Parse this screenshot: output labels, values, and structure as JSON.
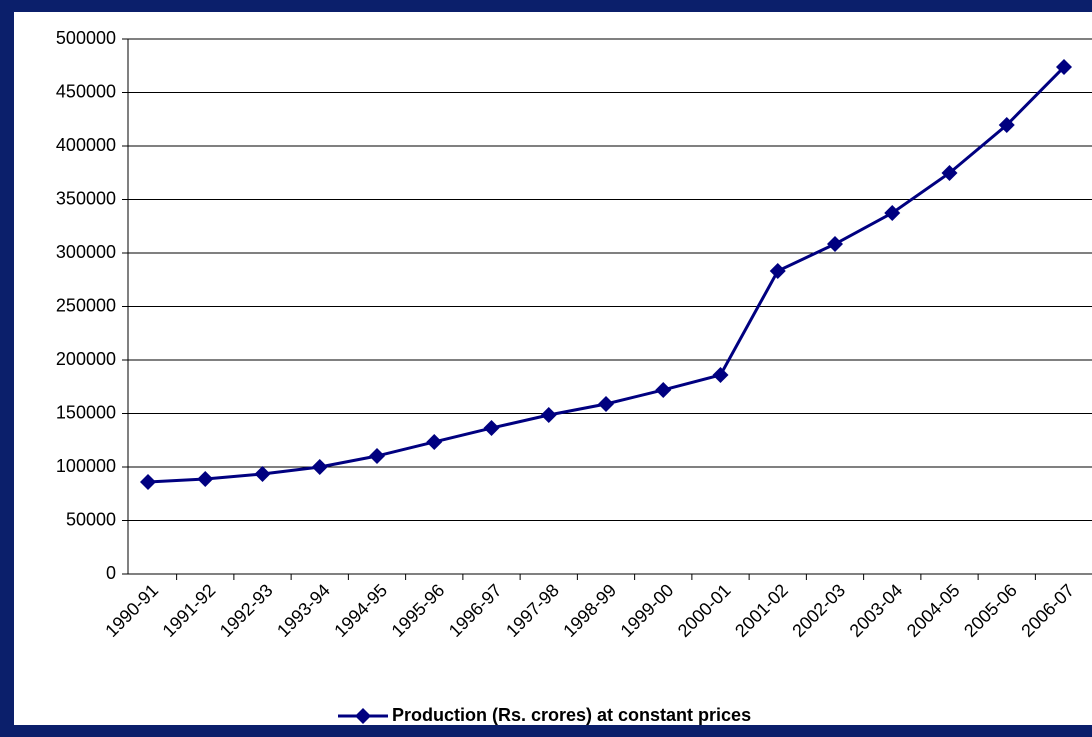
{
  "chart_data": {
    "type": "line",
    "categories": [
      "1990-91",
      "1991-92",
      "1992-93",
      "1993-94",
      "1994-95",
      "1995-96",
      "1996-97",
      "1997-98",
      "1998-99",
      "1999-00",
      "2000-01",
      "2001-02",
      "2002-03",
      "2003-04",
      "2004-05",
      "2005-06",
      "2006-07"
    ],
    "series": [
      {
        "name": "Production (Rs. crores) at constant prices",
        "color": "#000080",
        "values": [
          86000,
          88800,
          93500,
          100000,
          110300,
          123400,
          136400,
          148600,
          158900,
          172000,
          186000,
          283200,
          308400,
          337400,
          374800,
          419600,
          473800
        ]
      }
    ],
    "ylim": [
      0,
      500000
    ],
    "yticks": [
      0,
      50000,
      100000,
      150000,
      200000,
      250000,
      300000,
      350000,
      400000,
      450000,
      500000
    ],
    "grid": true,
    "legend": "bottom"
  }
}
